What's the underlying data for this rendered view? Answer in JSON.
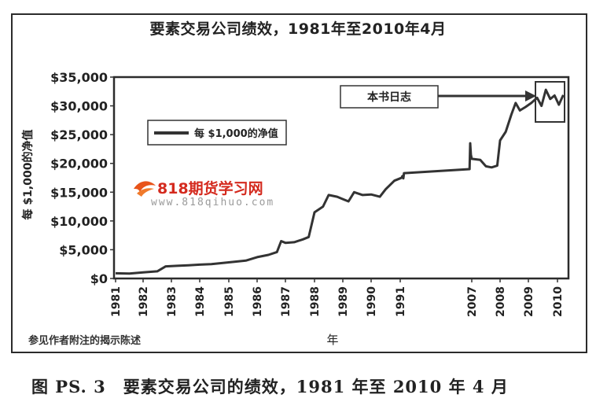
{
  "chart_data": {
    "type": "line",
    "title": "要素交易公司绩效，1981年至2010年4月",
    "xlabel": "年",
    "ylabel": "每 $1,000的净值",
    "ylim": [
      0,
      35000
    ],
    "y_ticks": [
      {
        "value": 0,
        "label": "$0"
      },
      {
        "value": 5000,
        "label": "$5,000"
      },
      {
        "value": 10000,
        "label": "$10,000"
      },
      {
        "value": 15000,
        "label": "$15,000"
      },
      {
        "value": 20000,
        "label": "$20,000"
      },
      {
        "value": 25000,
        "label": "$25,000"
      },
      {
        "value": 30000,
        "label": "$30,000"
      },
      {
        "value": 35000,
        "label": "$35,000"
      }
    ],
    "x_ticks": [
      "1981",
      "1982",
      "1983",
      "1984",
      "1985",
      "1986",
      "1987",
      "1988",
      "1989",
      "1990",
      "1991",
      "2007",
      "2008",
      "2009",
      "2010"
    ],
    "grid": false,
    "legend_position": "top-left",
    "series": [
      {
        "name": "每 $1,000的净值",
        "color": "#333333",
        "points": [
          [
            1981.0,
            900
          ],
          [
            1981.5,
            850
          ],
          [
            1982.0,
            1050
          ],
          [
            1982.5,
            1250
          ],
          [
            1982.8,
            2100
          ],
          [
            1983.2,
            2200
          ],
          [
            1983.6,
            2300
          ],
          [
            1984.0,
            2400
          ],
          [
            1984.4,
            2500
          ],
          [
            1984.8,
            2700
          ],
          [
            1985.2,
            2900
          ],
          [
            1985.6,
            3100
          ],
          [
            1986.0,
            3700
          ],
          [
            1986.4,
            4100
          ],
          [
            1986.7,
            4600
          ],
          [
            1986.85,
            6500
          ],
          [
            1987.0,
            6200
          ],
          [
            1987.3,
            6300
          ],
          [
            1987.6,
            6800
          ],
          [
            1987.8,
            7200
          ],
          [
            1988.0,
            11500
          ],
          [
            1988.3,
            12500
          ],
          [
            1988.5,
            14500
          ],
          [
            1988.8,
            14200
          ],
          [
            1989.0,
            13800
          ],
          [
            1989.2,
            13400
          ],
          [
            1989.4,
            15000
          ],
          [
            1989.7,
            14500
          ],
          [
            1990.0,
            14600
          ],
          [
            1990.3,
            14200
          ],
          [
            1990.5,
            15500
          ],
          [
            1990.8,
            17000
          ],
          [
            1991.0,
            17400
          ],
          [
            1991.3,
            17500
          ],
          [
            1991.5,
            17800
          ],
          [
            1991.7,
            17400
          ],
          [
            1991.85,
            18300
          ],
          [
            2006.5,
            19000
          ],
          [
            2006.65,
            23500
          ],
          [
            2006.8,
            21500
          ],
          [
            2007.0,
            20800
          ],
          [
            2007.3,
            20600
          ],
          [
            2007.5,
            19500
          ],
          [
            2007.7,
            19300
          ],
          [
            2007.9,
            19600
          ],
          [
            2008.0,
            24000
          ],
          [
            2008.2,
            25500
          ],
          [
            2008.4,
            28500
          ],
          [
            2008.55,
            30500
          ],
          [
            2008.7,
            29200
          ],
          [
            2008.9,
            29800
          ],
          [
            2009.1,
            30500
          ],
          [
            2009.3,
            31400
          ],
          [
            2009.45,
            30000
          ],
          [
            2009.6,
            32800
          ],
          [
            2009.75,
            31200
          ],
          [
            2009.9,
            31800
          ],
          [
            2010.05,
            30200
          ],
          [
            2010.2,
            31900
          ]
        ]
      }
    ],
    "annotations": [
      {
        "text": "本书日志",
        "points_to": {
          "x": 2009.7,
          "y": 32500
        }
      }
    ]
  },
  "note": "参见作者附注的揭示陈述",
  "caption": "图 PS. 3　要素交易公司的绩效，1981 年至 2010 年 4 月",
  "watermark": {
    "brand": "818期货学习网",
    "url": "www.818qihuo.com"
  }
}
